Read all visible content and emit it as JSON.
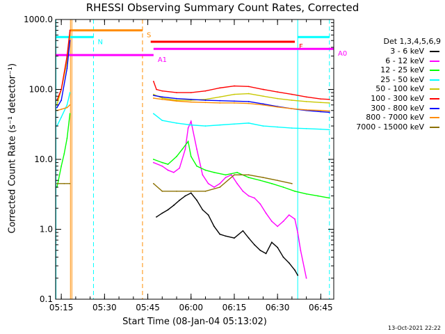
{
  "title": "RHESSI Observing Summary Count Rates, Corrected",
  "footnote": "13-Oct-2021 22:22",
  "chart_data": {
    "type": "line",
    "title": "RHESSI Observing Summary Count Rates, Corrected",
    "xlabel": "Start Time (08-Jan-04 05:13:02)",
    "ylabel": "Corrected Count Rate (s⁻¹ detector⁻¹)",
    "yscale": "log",
    "ylim": [
      0.1,
      1000
    ],
    "xlim": [
      "05:13:02",
      "06:49:30"
    ],
    "x_ticks": [
      "05:15",
      "05:30",
      "05:45",
      "06:00",
      "06:15",
      "06:30",
      "06:45"
    ],
    "y_ticks": [
      "0.1",
      "1.0",
      "10.0",
      "100.0",
      "1000.0"
    ],
    "grid": false,
    "legend_title": "Det 1,3,4,5,6,9",
    "legend_position": "right",
    "series": [
      {
        "name": "3 - 6 keV",
        "color": "#000000",
        "x": [
          "05:48",
          "05:50",
          "05:52",
          "05:54",
          "05:56",
          "05:58",
          "06:00",
          "06:02",
          "06:04",
          "06:06",
          "06:08",
          "06:10",
          "06:12",
          "06:15",
          "06:18",
          "06:20",
          "06:22",
          "06:24",
          "06:26",
          "06:28",
          "06:30",
          "06:32",
          "06:34",
          "06:36",
          "06:37"
        ],
        "values": [
          1.5,
          1.7,
          1.9,
          2.2,
          2.6,
          3.0,
          3.3,
          2.6,
          1.9,
          1.6,
          1.1,
          0.85,
          0.8,
          0.75,
          0.95,
          0.75,
          0.6,
          0.5,
          0.45,
          0.65,
          0.55,
          0.4,
          0.33,
          0.26,
          0.22
        ]
      },
      {
        "name": "6 - 12 keV",
        "color": "#ff00ff",
        "x": [
          "05:47",
          "05:50",
          "05:52",
          "05:54",
          "05:56",
          "05:58",
          "05:59",
          "06:00",
          "06:02",
          "06:04",
          "06:06",
          "06:08",
          "06:10",
          "06:12",
          "06:14",
          "06:16",
          "06:18",
          "06:20",
          "06:22",
          "06:24",
          "06:26",
          "06:28",
          "06:30",
          "06:32",
          "06:34",
          "06:36",
          "06:37",
          "06:38",
          "06:40"
        ],
        "values": [
          9,
          8,
          7,
          6.5,
          7.5,
          14,
          28,
          35,
          14,
          6,
          4.5,
          4,
          4.5,
          5.5,
          6,
          4.5,
          3.5,
          3,
          2.8,
          2.3,
          1.7,
          1.3,
          1.1,
          1.3,
          1.6,
          1.4,
          0.9,
          0.5,
          0.2
        ]
      },
      {
        "name": "12 - 25 keV",
        "color": "#00ff00",
        "x": [
          "05:13:30",
          "05:14",
          "05:15",
          "05:16",
          "05:17",
          "05:18",
          "05:47",
          "05:50",
          "05:52",
          "05:55",
          "05:57",
          "05:59",
          "06:00",
          "06:02",
          "06:05",
          "06:08",
          "06:12",
          "06:16",
          "06:20",
          "06:24",
          "06:28",
          "06:32",
          "06:36",
          "06:40",
          "06:44",
          "06:48"
        ],
        "values": [
          4,
          5,
          8,
          12,
          20,
          45,
          10,
          9,
          8.5,
          11,
          14,
          18,
          11,
          8,
          7,
          6.5,
          6,
          6.5,
          5.5,
          5,
          4.5,
          4,
          3.5,
          3.2,
          3,
          2.8
        ]
      },
      {
        "name": "25 - 50 keV",
        "color": "#00ffff",
        "x": [
          "05:13:30",
          "05:15",
          "05:17",
          "05:18",
          "05:47",
          "05:50",
          "05:55",
          "06:00",
          "06:05",
          "06:10",
          "06:15",
          "06:20",
          "06:25",
          "06:30",
          "06:35",
          "06:40",
          "06:45",
          "06:48"
        ],
        "values": [
          30,
          40,
          60,
          90,
          45,
          36,
          33,
          31,
          30,
          31,
          32,
          33,
          30,
          29,
          28,
          27.5,
          27,
          26.5
        ]
      },
      {
        "name": "50 - 100 keV",
        "color": "#c8c800",
        "x": [
          "05:13:30",
          "05:15",
          "05:17",
          "05:18",
          "05:47",
          "05:50",
          "05:55",
          "06:00",
          "06:05",
          "06:10",
          "06:15",
          "06:20",
          "06:25",
          "06:30",
          "06:35",
          "06:40",
          "06:45",
          "06:48"
        ],
        "values": [
          60,
          100,
          250,
          600,
          85,
          75,
          70,
          70,
          72,
          78,
          85,
          87,
          80,
          74,
          70,
          67,
          65,
          64
        ]
      },
      {
        "name": "100 - 300 keV",
        "color": "#ff0000",
        "x": [
          "05:13:30",
          "05:15",
          "05:17",
          "05:18",
          "05:47",
          "05:48",
          "05:50",
          "05:55",
          "06:00",
          "06:05",
          "06:10",
          "06:15",
          "06:20",
          "06:25",
          "06:30",
          "06:35",
          "06:40",
          "06:45",
          "06:48"
        ],
        "values": [
          70,
          100,
          300,
          700,
          130,
          100,
          95,
          90,
          90,
          95,
          105,
          112,
          110,
          100,
          92,
          85,
          78,
          73,
          72
        ]
      },
      {
        "name": "300 - 800 keV",
        "color": "#0000ff",
        "x": [
          "05:13:30",
          "05:15",
          "05:17",
          "05:18",
          "05:47",
          "05:50",
          "05:55",
          "06:00",
          "06:05",
          "06:10",
          "06:15",
          "06:20",
          "06:25",
          "06:30",
          "06:35",
          "06:40",
          "06:45",
          "06:48"
        ],
        "values": [
          55,
          70,
          200,
          500,
          82,
          78,
          74,
          72,
          70,
          69,
          68,
          67,
          62,
          57,
          53,
          50,
          48,
          47
        ]
      },
      {
        "name": "800 - 7000 keV",
        "color": "#ff8c00",
        "x": [
          "05:13:30",
          "05:15",
          "05:17",
          "05:18",
          "05:47",
          "05:50",
          "05:55",
          "06:00",
          "06:05",
          "06:10",
          "06:15",
          "06:20",
          "06:25",
          "06:30",
          "06:35",
          "06:40",
          "06:45",
          "06:48"
        ],
        "values": [
          50,
          52,
          55,
          60,
          75,
          72,
          68,
          66,
          65,
          64,
          64,
          63,
          60,
          56,
          53,
          51,
          50,
          49
        ]
      },
      {
        "name": "7000 - 15000 keV",
        "color": "#8b7000",
        "x": [
          "05:13:30",
          "05:16",
          "05:18",
          "05:47",
          "05:50",
          "05:55",
          "06:00",
          "06:05",
          "06:10",
          "06:15",
          "06:20",
          "06:25",
          "06:30",
          "06:35"
        ],
        "values": [
          4.5,
          4.5,
          4.5,
          4.5,
          3.5,
          3.5,
          3.5,
          3.5,
          4,
          6,
          6,
          5.5,
          5,
          4.5
        ]
      }
    ],
    "vlines": [
      {
        "time": "05:13:10",
        "color": "#00ffff",
        "style": "solid"
      },
      {
        "time": "05:18:10",
        "color": "#ff8c00",
        "style": "solid"
      },
      {
        "time": "05:18:40",
        "color": "#ff8c00",
        "style": "solid"
      },
      {
        "time": "05:26:10",
        "color": "#00ffff",
        "style": "dashed"
      },
      {
        "time": "05:43:10",
        "color": "#ff8c00",
        "style": "dashed"
      },
      {
        "time": "06:37:00",
        "color": "#00ffff",
        "style": "solid"
      },
      {
        "time": "06:48:00",
        "color": "#00ffff",
        "style": "dashed"
      }
    ],
    "flag_bars": [
      {
        "label": "S",
        "color": "#ff8c00",
        "start": "05:18:00",
        "end": "05:43:10",
        "y": 700
      },
      {
        "label": "N",
        "color": "#00ffff",
        "start": "05:13:10",
        "end": "05:26:10",
        "y": 560
      },
      {
        "label": "F",
        "color": "#ff0000",
        "start": "05:46:00",
        "end": "06:36:00",
        "y": 480
      },
      {
        "label": "A0",
        "color": "#ff00ff",
        "start": "05:47:00",
        "end": "06:49:30",
        "y": 380
      },
      {
        "label": "A1",
        "color": "#ff00ff",
        "start": "05:13:02",
        "end": "05:47:00",
        "y": 310
      },
      {
        "label": "",
        "color": "#00ffff",
        "start": "06:37:00",
        "end": "06:48:00",
        "y": 560
      }
    ]
  }
}
